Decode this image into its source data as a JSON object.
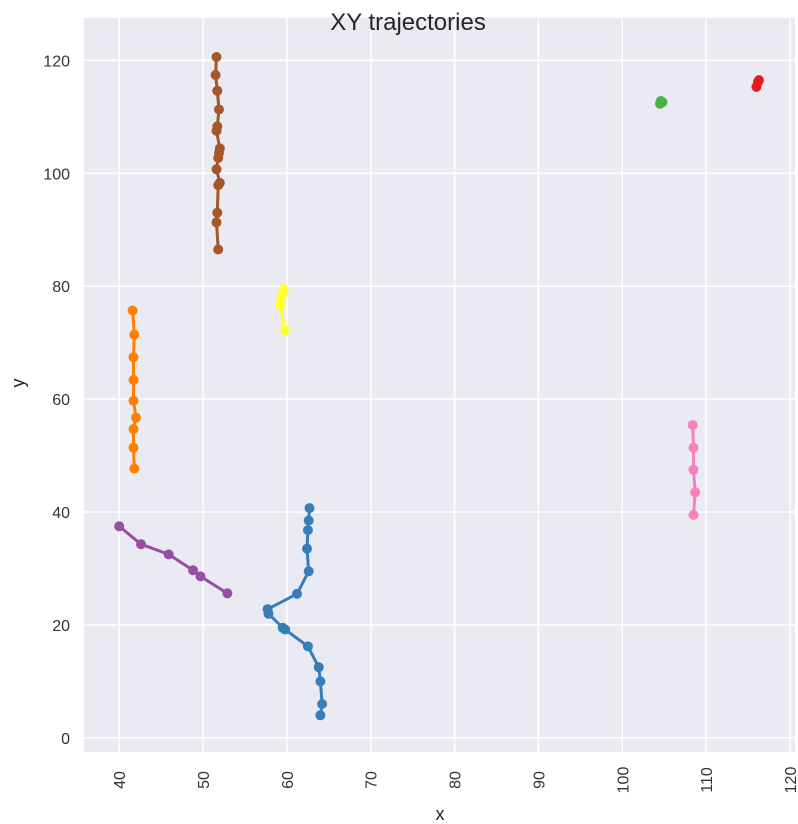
{
  "chart_data": {
    "type": "line",
    "title": "XY trajectories",
    "xlabel": "x",
    "ylabel": "y",
    "xlim": [
      35.8,
      120.6
    ],
    "ylim": [
      -2.5,
      127.5
    ],
    "xticks": [
      40,
      50,
      60,
      70,
      80,
      90,
      100,
      110,
      120
    ],
    "yticks": [
      0,
      20,
      40,
      60,
      80,
      100,
      120
    ],
    "grid": true,
    "markers": true,
    "series": [
      {
        "color": "#377eb8",
        "x": [
          64.0,
          64.2,
          64.0,
          63.8,
          62.5,
          59.8,
          59.5,
          57.8,
          57.7,
          61.2,
          62.6,
          62.4,
          62.5,
          62.6,
          62.7
        ],
        "y": [
          4.0,
          6.0,
          10.0,
          12.5,
          16.2,
          19.2,
          19.5,
          22.0,
          22.8,
          25.5,
          29.5,
          33.5,
          36.8,
          38.5,
          40.7
        ]
      },
      {
        "color": "#ff7f00",
        "x": [
          41.8,
          41.7,
          41.7,
          42.0,
          41.7,
          41.7,
          41.7,
          41.8,
          41.6
        ],
        "y": [
          47.7,
          51.4,
          54.7,
          56.7,
          59.7,
          63.4,
          67.4,
          71.4,
          75.7
        ]
      },
      {
        "color": "#4daf4a",
        "x": [
          104.5,
          104.8,
          104.6
        ],
        "y": [
          112.3,
          112.6,
          112.8
        ]
      },
      {
        "color": "#e41a1c",
        "x": [
          116.0,
          116.2,
          116.3
        ],
        "y": [
          115.3,
          116.2,
          116.5
        ]
      },
      {
        "color": "#984ea3",
        "x": [
          40.0,
          42.6,
          45.9,
          48.8,
          49.7,
          52.9
        ],
        "y": [
          37.5,
          34.3,
          32.5,
          29.7,
          28.6,
          25.6
        ]
      },
      {
        "color": "#a65628",
        "x": [
          51.8,
          51.6,
          51.7,
          51.8,
          52.0,
          51.6,
          51.8,
          51.9,
          52.0,
          51.6,
          51.7,
          51.9,
          51.7,
          51.5,
          51.6
        ],
        "y": [
          86.5,
          91.3,
          93.0,
          97.9,
          98.3,
          100.7,
          102.7,
          103.6,
          104.4,
          107.5,
          108.3,
          111.3,
          114.6,
          117.4,
          120.6
        ]
      },
      {
        "color": "#ffff33",
        "x": [
          59.8,
          59.2,
          59.3,
          59.5,
          59.6
        ],
        "y": [
          72.2,
          76.6,
          77.8,
          78.6,
          79.5
        ]
      },
      {
        "color": "#f781bf",
        "x": [
          108.5,
          108.7,
          108.5,
          108.5,
          108.4
        ],
        "y": [
          39.5,
          43.5,
          47.5,
          51.4,
          55.4
        ]
      }
    ]
  }
}
